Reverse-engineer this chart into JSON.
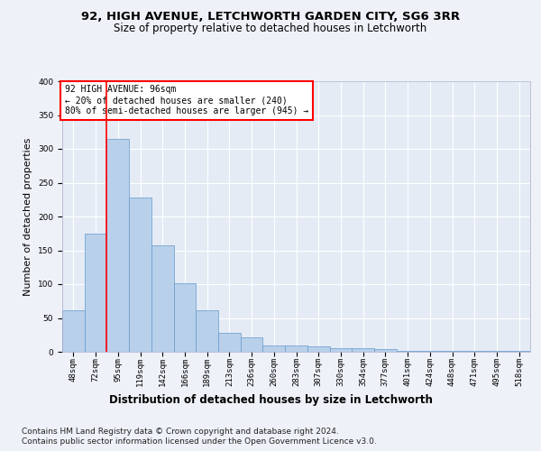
{
  "title1": "92, HIGH AVENUE, LETCHWORTH GARDEN CITY, SG6 3RR",
  "title2": "Size of property relative to detached houses in Letchworth",
  "xlabel": "Distribution of detached houses by size in Letchworth",
  "ylabel": "Number of detached properties",
  "footer1": "Contains HM Land Registry data © Crown copyright and database right 2024.",
  "footer2": "Contains public sector information licensed under the Open Government Licence v3.0.",
  "categories": [
    "48sqm",
    "72sqm",
    "95sqm",
    "119sqm",
    "142sqm",
    "166sqm",
    "189sqm",
    "213sqm",
    "236sqm",
    "260sqm",
    "283sqm",
    "307sqm",
    "330sqm",
    "354sqm",
    "377sqm",
    "401sqm",
    "424sqm",
    "448sqm",
    "471sqm",
    "495sqm",
    "518sqm"
  ],
  "values": [
    62,
    175,
    315,
    228,
    158,
    102,
    62,
    28,
    22,
    10,
    10,
    8,
    6,
    5,
    4,
    2,
    1,
    1,
    1,
    1,
    2
  ],
  "bar_color": "#b8d0ea",
  "bar_edge_color": "#6699cc",
  "annotation_line1": "92 HIGH AVENUE: 96sqm",
  "annotation_line2": "← 20% of detached houses are smaller (240)",
  "annotation_line3": "80% of semi-detached houses are larger (945) →",
  "annotation_box_color": "white",
  "annotation_box_edge_color": "red",
  "redline_x": 1.5,
  "ylim": [
    0,
    400
  ],
  "yticks": [
    0,
    50,
    100,
    150,
    200,
    250,
    300,
    350,
    400
  ],
  "bg_color": "#eef2f8",
  "plot_bg_color": "#e4ebf5",
  "grid_color": "white",
  "title1_fontsize": 9.5,
  "title2_fontsize": 8.5,
  "xlabel_fontsize": 8.5,
  "ylabel_fontsize": 8,
  "tick_fontsize": 6.5,
  "annot_fontsize": 7,
  "footer_fontsize": 6.5
}
